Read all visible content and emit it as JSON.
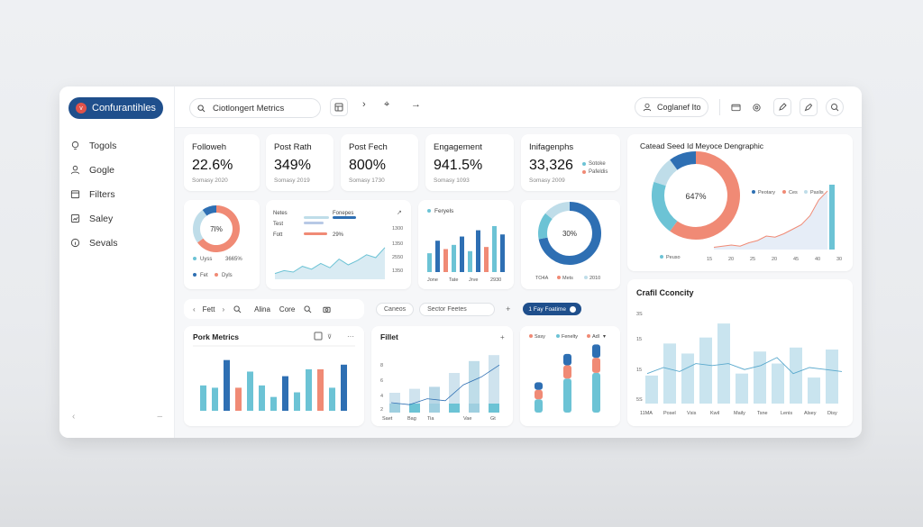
{
  "brand": {
    "name": "Confurantihles",
    "badge": "v"
  },
  "sidebar": {
    "items": [
      {
        "label": "Togols",
        "icon": "bulb-icon"
      },
      {
        "label": "Gogle",
        "icon": "user-icon"
      },
      {
        "label": "Filters",
        "icon": "calendar-icon"
      },
      {
        "label": "Saley",
        "icon": "chart-box-icon"
      },
      {
        "label": "Sevals",
        "icon": "info-icon"
      }
    ],
    "collapse_glyph": "‹",
    "more_glyph": "–"
  },
  "topbar": {
    "search_text": "Ciotlongert Metrics",
    "profile_label": "Coglanef Ito",
    "glyph_next": "›",
    "glyph_move": "⌖",
    "glyph_arrow": "→"
  },
  "kpis": [
    {
      "title": "Followeh",
      "value": "22.6%",
      "sub": "Somasy 2020"
    },
    {
      "title": "Post Rath",
      "value": "349%",
      "sub": "Somasy 2019"
    },
    {
      "title": "Post Fech",
      "value": "800%",
      "sub": "Somasy 1730"
    },
    {
      "title": "Engagement",
      "value": "941.5%",
      "sub": "Somasy 1093"
    },
    {
      "title": "Inifagenphs",
      "value": "33,326",
      "sub": "Somasy 2009",
      "legend": [
        "Sotoke",
        "Pafeldis"
      ]
    }
  ],
  "donut1": {
    "center": "7I%",
    "legend_row1": [
      "Uyss",
      "3665%"
    ],
    "legend_row2": [
      "Fet",
      "Dyls"
    ],
    "values": [
      65,
      25,
      10
    ]
  },
  "lines_card": {
    "rows": [
      [
        "Netes",
        "Fonepes"
      ],
      [
        "Test",
        ""
      ],
      [
        "Fott",
        "29%"
      ]
    ],
    "axis": [
      "1300",
      "1350",
      "2550",
      "1350"
    ],
    "area_values": [
      8,
      12,
      10,
      18,
      14,
      22,
      16,
      28,
      20,
      26,
      34,
      30,
      44
    ]
  },
  "bar_card": {
    "legend": "Feryels",
    "x_labels": [
      "Jone",
      "Tate",
      "Jrve",
      "2930"
    ],
    "values": [
      {
        "v": 18,
        "c": "#6cc3d5"
      },
      {
        "v": 30,
        "c": "#2e6fb3"
      },
      {
        "v": 22,
        "c": "#f08a75"
      },
      {
        "v": 26,
        "c": "#6cc3d5"
      },
      {
        "v": 34,
        "c": "#2e6fb3"
      },
      {
        "v": 20,
        "c": "#6cc3d5"
      },
      {
        "v": 40,
        "c": "#2e6fb3"
      },
      {
        "v": 24,
        "c": "#f08a75"
      },
      {
        "v": 44,
        "c": "#6cc3d5"
      },
      {
        "v": 36,
        "c": "#2e6fb3"
      }
    ]
  },
  "donut2": {
    "center": "30%",
    "legend": [
      "TO4A",
      "Mets",
      "2010"
    ],
    "values": [
      72,
      14,
      14
    ]
  },
  "big_panel": {
    "title": "Catead Seed Id Meyoce Dengraphic",
    "donut_center": "647%",
    "donut_legend": [
      "Peotary",
      "Ces",
      "Paslis"
    ],
    "donut_foot": "Peuso",
    "x_ticks": [
      "15",
      "20",
      "25",
      "20",
      "45",
      "40",
      "30"
    ],
    "line_values": [
      2,
      3,
      4,
      3,
      6,
      8,
      12,
      11,
      14,
      18,
      22,
      30,
      44,
      52
    ],
    "spike_value": 100
  },
  "filterbar1": {
    "items": [
      "Fett",
      "Alina",
      "Core"
    ]
  },
  "filterbar2": {
    "pill1": "Caneos",
    "pill2": "Sector Feetes",
    "toggle": "1 Fay Foatime"
  },
  "pork": {
    "title": "Pork Metrics",
    "values": [
      {
        "v": 22,
        "c": "#6cc3d5"
      },
      {
        "v": 20,
        "c": "#6cc3d5"
      },
      {
        "v": 44,
        "c": "#2e6fb3"
      },
      {
        "v": 20,
        "c": "#f08a75"
      },
      {
        "v": 34,
        "c": "#6cc3d5"
      },
      {
        "v": 22,
        "c": "#6cc3d5"
      },
      {
        "v": 12,
        "c": "#6cc3d5"
      },
      {
        "v": 30,
        "c": "#2e6fb3"
      },
      {
        "v": 16,
        "c": "#6cc3d5"
      },
      {
        "v": 36,
        "c": "#6cc3d5"
      },
      {
        "v": 36,
        "c": "#f08a75"
      },
      {
        "v": 20,
        "c": "#6cc3d5"
      },
      {
        "v": 40,
        "c": "#2e6fb3"
      }
    ]
  },
  "fillet": {
    "title": "Fillet",
    "y_labels": [
      "8",
      "6",
      "4",
      "2"
    ],
    "x_labels": [
      "Saet",
      "Bag",
      "Tia",
      "Vae",
      "Gt"
    ],
    "bars": [
      20,
      24,
      26,
      40,
      52,
      58
    ],
    "line": [
      10,
      8,
      14,
      12,
      28,
      36,
      48
    ]
  },
  "stack": {
    "legend": [
      "Sssy",
      "Fenelty",
      "Adl"
    ],
    "bars": [
      [
        14,
        10,
        8
      ],
      [
        36,
        14,
        12
      ],
      [
        42,
        16,
        14
      ]
    ]
  },
  "crafil": {
    "title": "Crafil Cconcity",
    "y_labels": [
      "3S",
      "15",
      "15",
      "5S"
    ],
    "x_labels": [
      "11MA",
      "Posel",
      "Vsis",
      "Kwil",
      "Maily",
      "Tsne",
      "Lenis",
      "Alsey",
      "Disy"
    ],
    "bars": [
      28,
      60,
      50,
      66,
      80,
      30,
      52,
      40,
      56,
      26,
      54
    ],
    "line": [
      30,
      36,
      32,
      40,
      38,
      40,
      34,
      38,
      46,
      30,
      36,
      34,
      32
    ]
  },
  "colors": {
    "navy": "#1f4f8c",
    "blue": "#2e6fb3",
    "teal": "#6cc3d5",
    "coral": "#f08a75",
    "light": "#bfdde9"
  }
}
